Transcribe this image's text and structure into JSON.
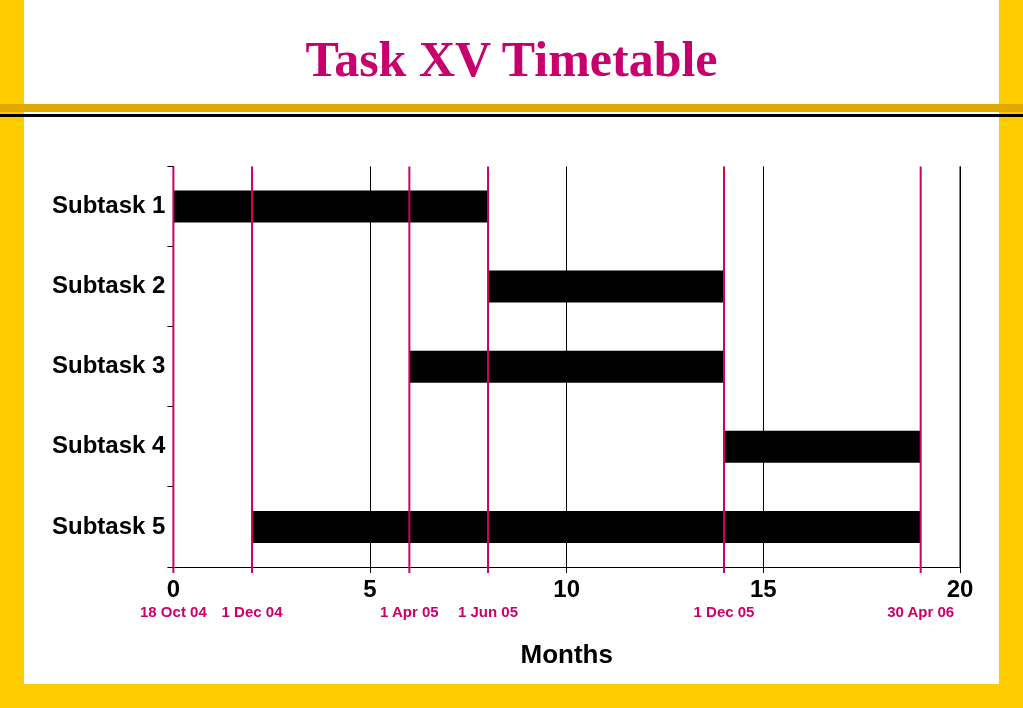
{
  "chart_data": {
    "type": "bar",
    "orientation": "horizontal",
    "title": "Task XV Timetable",
    "xlabel": "Months",
    "categories": [
      "Subtask 1",
      "Subtask 2",
      "Subtask 3",
      "Subtask 4",
      "Subtask 5"
    ],
    "base": [
      0,
      8,
      6,
      14,
      2
    ],
    "values": [
      8,
      6,
      8,
      5,
      17
    ],
    "color": "#000000",
    "xlim": [
      0,
      20
    ],
    "xticks": [
      0,
      5,
      10,
      15,
      20
    ],
    "grid": "x",
    "ref_lines": [
      {
        "axis": "x",
        "value": 0,
        "label": "18 Oct 04",
        "color": "#cc0066"
      },
      {
        "axis": "x",
        "value": 2,
        "label": "1 Dec 04",
        "color": "#cc0066"
      },
      {
        "axis": "x",
        "value": 6,
        "label": "1 Apr 05",
        "color": "#cc0066"
      },
      {
        "axis": "x",
        "value": 8,
        "label": "1 Jun 05",
        "color": "#cc0066"
      },
      {
        "axis": "x",
        "value": 14,
        "label": "1 Dec 05",
        "color": "#cc0066"
      },
      {
        "axis": "x",
        "value": 19,
        "label": "30 Apr 06",
        "color": "#cc0066"
      }
    ]
  }
}
